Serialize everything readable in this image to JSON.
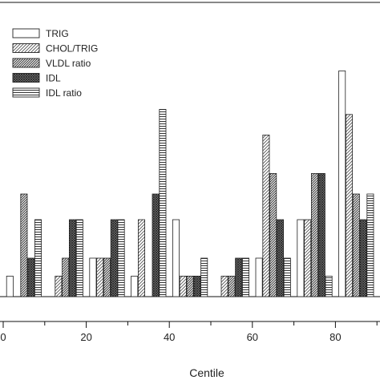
{
  "chart_data": {
    "type": "bar",
    "xlabel": "Centile",
    "ylabel": "",
    "xlim": [
      -1,
      92
    ],
    "ylim": [
      -3,
      110
    ],
    "x_ticks": [
      0,
      20,
      40,
      60,
      80
    ],
    "grid": false,
    "legend_position": "top-left",
    "categories": [
      5,
      15,
      25,
      35,
      45,
      55,
      65,
      75,
      85
    ],
    "series": [
      {
        "name": "TRIG",
        "pattern": "blank",
        "values": [
          8,
          0,
          15,
          8,
          30,
          0,
          15,
          30,
          88
        ]
      },
      {
        "name": "CHOL/TRIG",
        "pattern": "diagonal",
        "values": [
          0,
          8,
          15,
          30,
          8,
          8,
          63,
          30,
          71
        ]
      },
      {
        "name": "VLDL ratio",
        "pattern": "diagonal-dense",
        "values": [
          40,
          15,
          15,
          0,
          8,
          8,
          48,
          48,
          40
        ]
      },
      {
        "name": "IDL",
        "pattern": "crosshatch",
        "values": [
          15,
          30,
          30,
          40,
          8,
          15,
          30,
          48,
          30
        ]
      },
      {
        "name": "IDL ratio",
        "pattern": "horizontal",
        "values": [
          30,
          30,
          30,
          73,
          15,
          15,
          15,
          8,
          40
        ]
      }
    ]
  }
}
